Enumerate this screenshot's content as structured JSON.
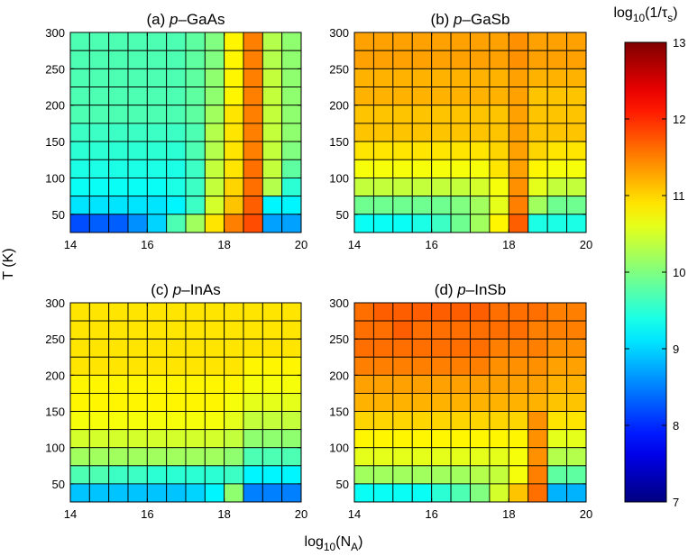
{
  "chart_data": {
    "type": "heatmap",
    "xlabel": "log10(NA)",
    "xlabel_base": "log",
    "xlabel_sub": "10",
    "xlabel_arg": "(N",
    "xlabel_arg_sub": "A",
    "xlabel_close": ")",
    "ylabel": "T (K)",
    "colorbar": {
      "title": "log10(1/τs)",
      "title_base": "log",
      "title_sub": "10",
      "title_arg": "(1/τ",
      "title_arg_sub": "s",
      "title_close": ")",
      "min": 7,
      "max": 13,
      "ticks": [
        "7",
        "8",
        "9",
        "10",
        "11",
        "12",
        "13"
      ],
      "colormap": "jet"
    },
    "x_range": [
      14,
      20
    ],
    "x_ticks": [
      "14",
      "16",
      "18",
      "20"
    ],
    "y_range": [
      25,
      300
    ],
    "y_ticks": [
      "50",
      "100",
      "150",
      "200",
      "250",
      "300"
    ],
    "x_edges": [
      14,
      14.5,
      15,
      15.5,
      16,
      16.5,
      17,
      17.5,
      18,
      18.5,
      19,
      19.5,
      20
    ],
    "y_edges": [
      25,
      50,
      75,
      100,
      125,
      150,
      175,
      200,
      225,
      250,
      275,
      300
    ],
    "rows_order": "T from 300 (top) to 50 (bottom)",
    "panels": [
      {
        "label": "(a)",
        "material_prefix": "p",
        "material": "–GaAs",
        "values": [
          [
            9.7,
            9.7,
            9.7,
            9.7,
            9.7,
            9.7,
            9.8,
            10.0,
            10.8,
            11.5,
            10.3,
            10.1
          ],
          [
            9.7,
            9.7,
            9.7,
            9.7,
            9.7,
            9.7,
            9.8,
            10.0,
            10.8,
            11.5,
            10.3,
            10.1
          ],
          [
            9.7,
            9.7,
            9.7,
            9.7,
            9.7,
            9.7,
            9.8,
            10.1,
            10.8,
            11.5,
            10.4,
            10.1
          ],
          [
            9.7,
            9.7,
            9.7,
            9.7,
            9.7,
            9.7,
            9.8,
            10.1,
            10.8,
            11.5,
            10.4,
            10.1
          ],
          [
            9.7,
            9.7,
            9.7,
            9.7,
            9.7,
            9.7,
            9.8,
            10.2,
            10.9,
            11.5,
            10.4,
            10.1
          ],
          [
            9.6,
            9.6,
            9.6,
            9.6,
            9.6,
            9.6,
            9.7,
            10.3,
            10.9,
            11.5,
            10.4,
            10.1
          ],
          [
            9.5,
            9.5,
            9.5,
            9.5,
            9.5,
            9.5,
            9.7,
            10.3,
            10.9,
            11.5,
            10.4,
            10.0
          ],
          [
            9.4,
            9.4,
            9.4,
            9.4,
            9.4,
            9.4,
            9.6,
            10.4,
            10.9,
            11.6,
            10.4,
            9.8
          ],
          [
            9.3,
            9.3,
            9.3,
            9.3,
            9.3,
            9.4,
            9.6,
            10.4,
            11.0,
            11.6,
            10.3,
            9.5
          ],
          [
            9.1,
            9.1,
            9.1,
            9.1,
            9.1,
            9.2,
            9.6,
            10.5,
            11.1,
            11.7,
            9.2,
            9.2
          ],
          [
            8.2,
            8.3,
            8.3,
            8.6,
            9.0,
            9.7,
            10.2,
            10.9,
            11.5,
            11.8,
            8.7,
            8.7
          ]
        ]
      },
      {
        "label": "(b)",
        "material_prefix": "p",
        "material": "–GaSb",
        "values": [
          [
            11.3,
            11.3,
            11.3,
            11.3,
            11.3,
            11.3,
            11.3,
            11.3,
            11.4,
            11.3,
            11.3,
            11.3
          ],
          [
            11.3,
            11.3,
            11.3,
            11.3,
            11.3,
            11.3,
            11.3,
            11.3,
            11.4,
            11.3,
            11.3,
            11.3
          ],
          [
            11.2,
            11.2,
            11.2,
            11.2,
            11.2,
            11.2,
            11.2,
            11.2,
            11.3,
            11.2,
            11.2,
            11.2
          ],
          [
            11.2,
            11.2,
            11.2,
            11.2,
            11.2,
            11.2,
            11.2,
            11.2,
            11.3,
            11.1,
            11.1,
            11.1
          ],
          [
            11.1,
            11.1,
            11.1,
            11.1,
            11.1,
            11.1,
            11.1,
            11.1,
            11.3,
            11.1,
            11.1,
            11.1
          ],
          [
            11.1,
            11.1,
            11.1,
            11.1,
            11.1,
            11.1,
            11.1,
            11.1,
            11.3,
            11.1,
            11.1,
            11.1
          ],
          [
            10.9,
            10.9,
            10.9,
            10.9,
            10.9,
            10.9,
            10.9,
            11.0,
            11.3,
            11.0,
            10.9,
            10.9
          ],
          [
            10.7,
            10.7,
            10.7,
            10.7,
            10.7,
            10.7,
            10.7,
            10.9,
            11.3,
            10.8,
            10.7,
            10.7
          ],
          [
            10.4,
            10.4,
            10.4,
            10.4,
            10.4,
            10.4,
            10.5,
            10.7,
            11.4,
            10.6,
            10.4,
            10.4
          ],
          [
            9.9,
            9.9,
            9.9,
            9.9,
            9.9,
            10.0,
            10.2,
            10.6,
            11.5,
            10.2,
            9.9,
            9.9
          ],
          [
            9.3,
            9.3,
            9.3,
            9.4,
            9.6,
            9.9,
            10.2,
            10.8,
            11.7,
            9.4,
            9.4,
            9.4
          ]
        ]
      },
      {
        "label": "(c)",
        "material_prefix": "p",
        "material": "–InAs",
        "values": [
          [
            10.9,
            10.9,
            10.9,
            10.9,
            10.9,
            10.9,
            10.9,
            10.9,
            10.9,
            10.9,
            10.9,
            10.9
          ],
          [
            10.9,
            10.9,
            10.9,
            10.9,
            10.9,
            10.9,
            10.9,
            10.9,
            10.9,
            10.9,
            10.9,
            10.9
          ],
          [
            10.9,
            10.9,
            10.9,
            10.9,
            10.9,
            10.9,
            10.9,
            10.9,
            10.9,
            10.9,
            10.9,
            10.9
          ],
          [
            10.9,
            10.9,
            10.9,
            10.9,
            10.9,
            10.9,
            10.9,
            10.9,
            10.9,
            10.8,
            10.8,
            10.8
          ],
          [
            10.8,
            10.8,
            10.8,
            10.8,
            10.8,
            10.8,
            10.8,
            10.8,
            10.8,
            10.7,
            10.7,
            10.7
          ],
          [
            10.8,
            10.8,
            10.8,
            10.8,
            10.8,
            10.8,
            10.8,
            10.8,
            10.7,
            10.6,
            10.6,
            10.6
          ],
          [
            10.7,
            10.7,
            10.7,
            10.7,
            10.7,
            10.7,
            10.7,
            10.7,
            10.6,
            10.4,
            10.4,
            10.4
          ],
          [
            10.5,
            10.5,
            10.5,
            10.5,
            10.5,
            10.5,
            10.5,
            10.5,
            10.4,
            10.1,
            10.1,
            10.1
          ],
          [
            10.2,
            10.2,
            10.2,
            10.2,
            10.2,
            10.2,
            10.2,
            10.2,
            10.1,
            9.7,
            9.7,
            9.7
          ],
          [
            9.7,
            9.7,
            9.6,
            9.6,
            9.5,
            9.5,
            9.5,
            9.5,
            9.6,
            9.2,
            9.2,
            9.2
          ],
          [
            8.9,
            8.9,
            8.9,
            8.9,
            8.9,
            8.9,
            9.0,
            9.2,
            10.1,
            8.5,
            8.5,
            8.5
          ]
        ]
      },
      {
        "label": "(d)",
        "material_prefix": "p",
        "material": "–InSb",
        "values": [
          [
            11.6,
            11.7,
            11.7,
            11.7,
            11.7,
            11.7,
            11.7,
            11.6,
            11.6,
            11.6,
            11.5,
            11.5
          ],
          [
            11.6,
            11.6,
            11.7,
            11.6,
            11.6,
            11.6,
            11.6,
            11.6,
            11.6,
            11.5,
            11.5,
            11.5
          ],
          [
            11.6,
            11.6,
            11.6,
            11.6,
            11.6,
            11.6,
            11.6,
            11.5,
            11.5,
            11.5,
            11.4,
            11.4
          ],
          [
            11.5,
            11.5,
            11.5,
            11.5,
            11.5,
            11.5,
            11.5,
            11.4,
            11.4,
            11.4,
            11.3,
            11.3
          ],
          [
            11.3,
            11.3,
            11.3,
            11.3,
            11.3,
            11.3,
            11.3,
            11.3,
            11.3,
            11.3,
            11.2,
            11.2
          ],
          [
            11.2,
            11.2,
            11.2,
            11.2,
            11.2,
            11.2,
            11.2,
            11.2,
            11.2,
            11.2,
            11.1,
            11.1
          ],
          [
            11.0,
            11.0,
            11.0,
            11.0,
            11.0,
            11.0,
            11.0,
            11.0,
            11.0,
            11.4,
            10.9,
            10.9
          ],
          [
            10.8,
            10.8,
            10.8,
            10.8,
            10.8,
            10.8,
            10.8,
            10.8,
            10.8,
            11.4,
            10.6,
            10.6
          ],
          [
            10.6,
            10.6,
            10.6,
            10.6,
            10.6,
            10.6,
            10.6,
            10.6,
            10.7,
            11.4,
            10.3,
            10.3
          ],
          [
            10.2,
            10.2,
            10.2,
            10.2,
            10.2,
            10.2,
            10.3,
            10.4,
            10.7,
            11.5,
            9.8,
            9.8
          ],
          [
            9.3,
            9.3,
            9.3,
            9.3,
            9.5,
            9.7,
            10.0,
            10.5,
            11.1,
            11.6,
            8.8,
            8.8
          ]
        ]
      }
    ]
  }
}
